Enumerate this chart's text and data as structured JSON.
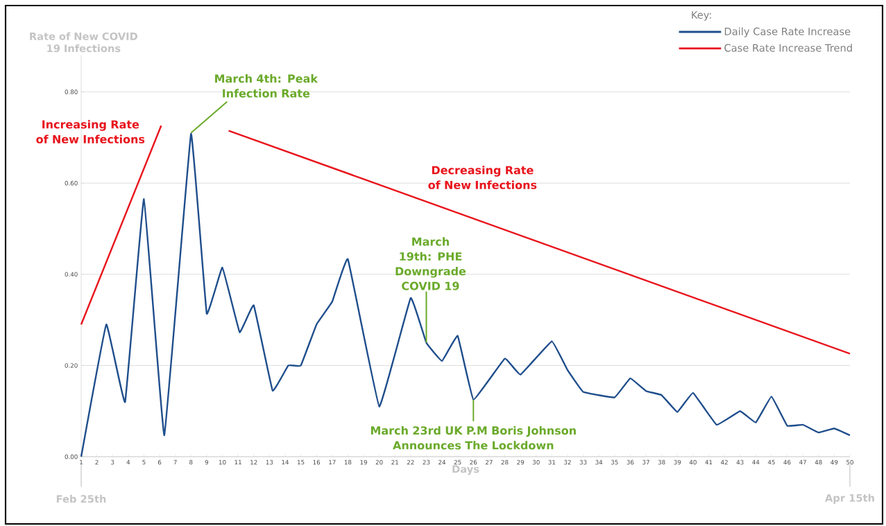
{
  "chart_data": {
    "type": "line",
    "ylabel": "Rate of New COVID 19 Infections",
    "xlabel": "Days",
    "legend_title": "Key:",
    "legend": "top right",
    "grid": "y",
    "marker": "none",
    "xlim": [
      1,
      50
    ],
    "ylim": [
      0,
      0.88
    ],
    "xticks": [
      1,
      2,
      3,
      4,
      5,
      6,
      7,
      8,
      9,
      10,
      11,
      12,
      13,
      14,
      15,
      16,
      17,
      18,
      19,
      20,
      21,
      22,
      23,
      24,
      25,
      26,
      27,
      28,
      29,
      30,
      31,
      32,
      33,
      34,
      35,
      36,
      37,
      38,
      39,
      40,
      41,
      42,
      43,
      44,
      45,
      46,
      47,
      48,
      49,
      50
    ],
    "yticks": [
      {
        "value": 0,
        "label": "0.00"
      },
      {
        "value": 0.2,
        "label": "0.20"
      },
      {
        "value": 0.4,
        "label": "0.40"
      },
      {
        "value": 0.6,
        "label": "0.60"
      },
      {
        "value": 0.8,
        "label": "0.80"
      }
    ],
    "series": [
      {
        "name": "Daily Case Rate Increase",
        "color": "#1f4e8c",
        "x": [
          1,
          2.6,
          3.8,
          5,
          6.3,
          8,
          9,
          10,
          11.1,
          12,
          13.2,
          14.2,
          15,
          16,
          17,
          18,
          20,
          22,
          23,
          24,
          25,
          26,
          28,
          29,
          31,
          32,
          33,
          35,
          36,
          37,
          38,
          39,
          40,
          41.5,
          43,
          44,
          45,
          46,
          47,
          48,
          49,
          50
        ],
        "values": [
          0.0,
          0.29,
          0.12,
          0.565,
          0.047,
          0.708,
          0.314,
          0.415,
          0.273,
          0.332,
          0.145,
          0.2,
          0.2,
          0.29,
          0.34,
          0.433,
          0.11,
          0.348,
          0.25,
          0.21,
          0.265,
          0.125,
          0.215,
          0.18,
          0.253,
          0.19,
          0.142,
          0.13,
          0.172,
          0.144,
          0.135,
          0.098,
          0.14,
          0.07,
          0.1,
          0.075,
          0.132,
          0.068,
          0.07,
          0.053,
          0.062,
          0.047
        ]
      },
      {
        "name": "Case Rate Increase Trend",
        "color": "#e8141c",
        "x": [
          1,
          6.1,
          8,
          10.4,
          50
        ],
        "values": [
          0.29,
          0.726,
          null,
          0.715,
          0.226
        ]
      }
    ],
    "annotations": [
      "Increasing Rate of New Infections",
      {
        "text": "March 4th: Peak Infection Rate",
        "x": 8,
        "y": 0.71
      },
      "Decreasing Rate of New Infections",
      {
        "text": "March 19th: PHE Downgrade COVID 19",
        "x": 23,
        "y": 0.25
      },
      {
        "text": "March 23rd UK P.M Boris Johnson Announces The Lockdown",
        "x": 26,
        "y": 0.125
      },
      "Feb 25th",
      "Apr 15th"
    ]
  }
}
